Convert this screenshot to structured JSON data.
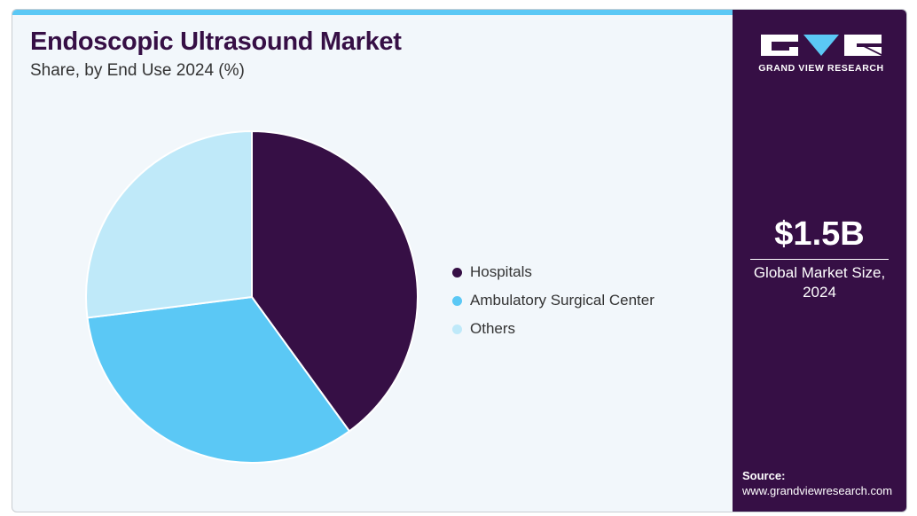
{
  "header": {
    "title": "Endoscopic Ultrasound Market",
    "subtitle": "Share, by End Use 2024 (%)"
  },
  "colors": {
    "hospitals": "#360f45",
    "ambulatory": "#5bc8f5",
    "others": "#bfe9f9",
    "panel": "#360f45",
    "accent": "#5bc8f5"
  },
  "chart_data": {
    "type": "pie",
    "title": "Endoscopic Ultrasound Market",
    "subtitle": "Share, by End Use 2024 (%)",
    "categories": [
      "Hospitals",
      "Ambulatory Surgical Center",
      "Others"
    ],
    "values": [
      40,
      33,
      27
    ],
    "colors": [
      "#360f45",
      "#5bc8f5",
      "#bfe9f9"
    ],
    "legend_position": "right"
  },
  "sidebar": {
    "brand": "GRAND VIEW RESEARCH",
    "market_value": "$1.5B",
    "market_label": "Global Market Size, 2024",
    "source_label": "Source:",
    "source_url": "www.grandviewresearch.com"
  }
}
